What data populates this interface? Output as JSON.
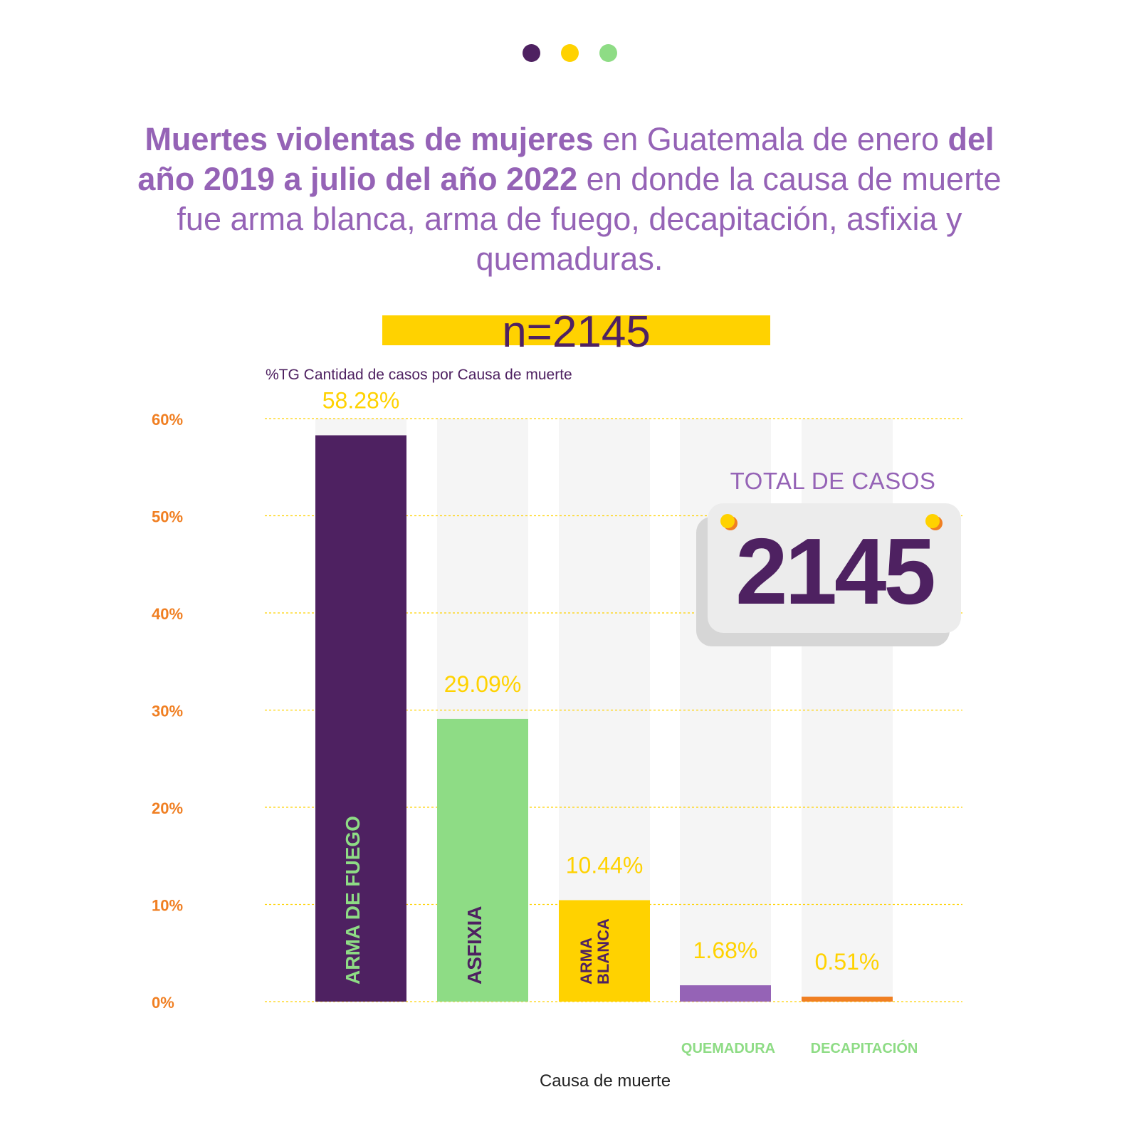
{
  "colors": {
    "purple_dark": "#4e2161",
    "purple_light": "#9563b6",
    "yellow": "#ffd200",
    "green": "#8edc85",
    "orange": "#f07f22",
    "track": "#f5f5f5"
  },
  "header": {
    "dots": [
      "#4e2161",
      "#ffd200",
      "#8edc85"
    ],
    "title_segments": [
      {
        "text": "Muertes violentas de mujeres",
        "bold": true
      },
      {
        "text": " en Guatemala de enero ",
        "bold": false
      },
      {
        "text": "del año 2019 a julio del año 2022",
        "bold": true
      },
      {
        "text": " en donde la causa de muerte fue arma blanca, arma de fuego, decapitación, asfixia y quemaduras.",
        "bold": false
      }
    ],
    "n_label": "n=2145"
  },
  "chart_data": {
    "type": "bar",
    "title": "%TG Cantidad de casos por Causa de muerte",
    "xlabel": "Causa de muerte",
    "ylabel": "",
    "ylim": [
      0,
      60
    ],
    "yticks": [
      0,
      10,
      20,
      30,
      40,
      50,
      60
    ],
    "ytick_labels": [
      "0%",
      "10%",
      "20%",
      "30%",
      "40%",
      "50%",
      "60%"
    ],
    "grid": true,
    "categories": [
      "ARMA DE FUEGO",
      "ASFIXIA",
      "ARMA BLANCA",
      "QUEMADURA",
      "DECAPITACIÓN"
    ],
    "values": [
      58.28,
      29.09,
      10.44,
      1.68,
      0.51
    ],
    "value_labels": [
      "58.28%",
      "29.09%",
      "10.44%",
      "1.68%",
      "0.51%"
    ],
    "bar_colors": [
      "#4e2161",
      "#8edc85",
      "#ffd200",
      "#9563b6",
      "#f07f22"
    ]
  },
  "total": {
    "label": "TOTAL DE CASOS",
    "value": "2145"
  }
}
